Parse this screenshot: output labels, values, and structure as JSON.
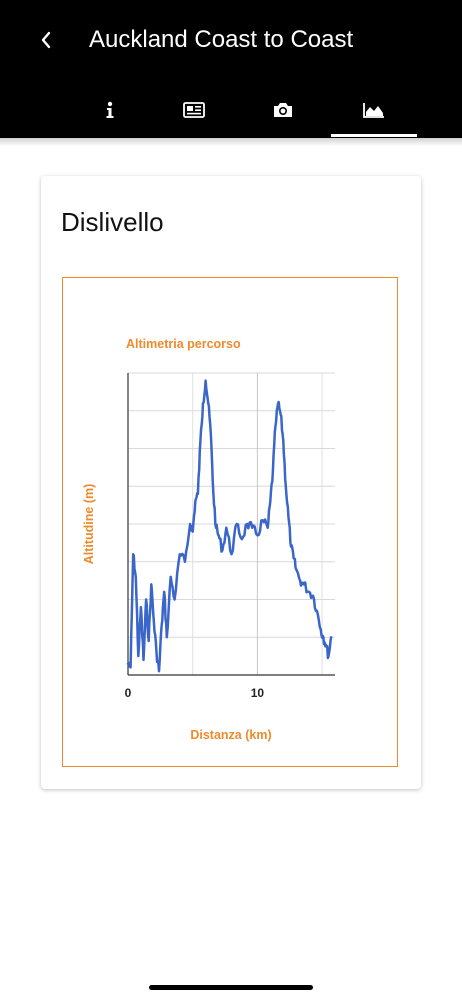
{
  "header": {
    "title": "Auckland Coast to Coast",
    "tabs": [
      {
        "icon": "info-icon",
        "active": false
      },
      {
        "icon": "newspaper-icon",
        "active": false
      },
      {
        "icon": "camera-icon",
        "active": false
      },
      {
        "icon": "area-chart-icon",
        "active": true
      }
    ]
  },
  "card": {
    "title": "Dislivello"
  },
  "colors": {
    "accent": "#ef8a2c",
    "line": "#3b66c9",
    "header_bg": "#000000"
  },
  "chart_data": {
    "type": "line",
    "title": "Altimetria percorso",
    "xlabel": "Distanza (km)",
    "ylabel": "Altitudine (m)",
    "xlim": [
      0,
      16
    ],
    "ylim": [
      0,
      8
    ],
    "x_ticks": [
      "0",
      "10"
    ],
    "grid": true,
    "legend": "none",
    "series": [
      {
        "x": [
          0,
          0.2,
          0.4,
          0.6,
          0.8,
          1.0,
          1.2,
          1.4,
          1.6,
          1.8,
          2.0,
          2.2,
          2.4,
          2.6,
          2.8,
          3.0,
          3.3,
          3.6,
          4.0,
          4.4,
          4.8,
          5.0,
          5.2,
          5.4,
          5.6,
          5.8,
          6.0,
          6.2,
          6.4,
          6.6,
          6.8,
          7.0,
          7.3,
          7.6,
          8.0,
          8.4,
          8.8,
          9.2,
          9.6,
          10.0,
          10.4,
          10.8,
          11.0,
          11.2,
          11.4,
          11.6,
          11.8,
          12.0,
          12.2,
          12.4,
          12.6,
          12.8,
          13.0,
          13.3,
          13.6,
          14.0,
          14.3,
          14.6,
          14.9,
          15.1,
          15.3,
          15.5,
          15.7
        ],
        "y": [
          0.3,
          0.2,
          3.2,
          2.6,
          0.5,
          1.8,
          0.4,
          2.0,
          0.9,
          2.4,
          1.4,
          0.6,
          0.1,
          1.3,
          2.2,
          1.0,
          2.6,
          2.0,
          3.2,
          3.0,
          4.0,
          3.8,
          4.6,
          4.8,
          6.2,
          7.2,
          7.8,
          7.2,
          6.4,
          4.8,
          3.9,
          3.7,
          3.3,
          3.9,
          3.2,
          4.0,
          3.6,
          4.0,
          3.9,
          3.7,
          4.1,
          3.9,
          4.6,
          5.4,
          6.6,
          7.2,
          6.9,
          6.2,
          5.0,
          4.2,
          3.4,
          3.1,
          2.8,
          2.5,
          2.4,
          2.2,
          2.1,
          1.7,
          1.2,
          1.0,
          0.8,
          0.5,
          1.0
        ]
      }
    ]
  }
}
